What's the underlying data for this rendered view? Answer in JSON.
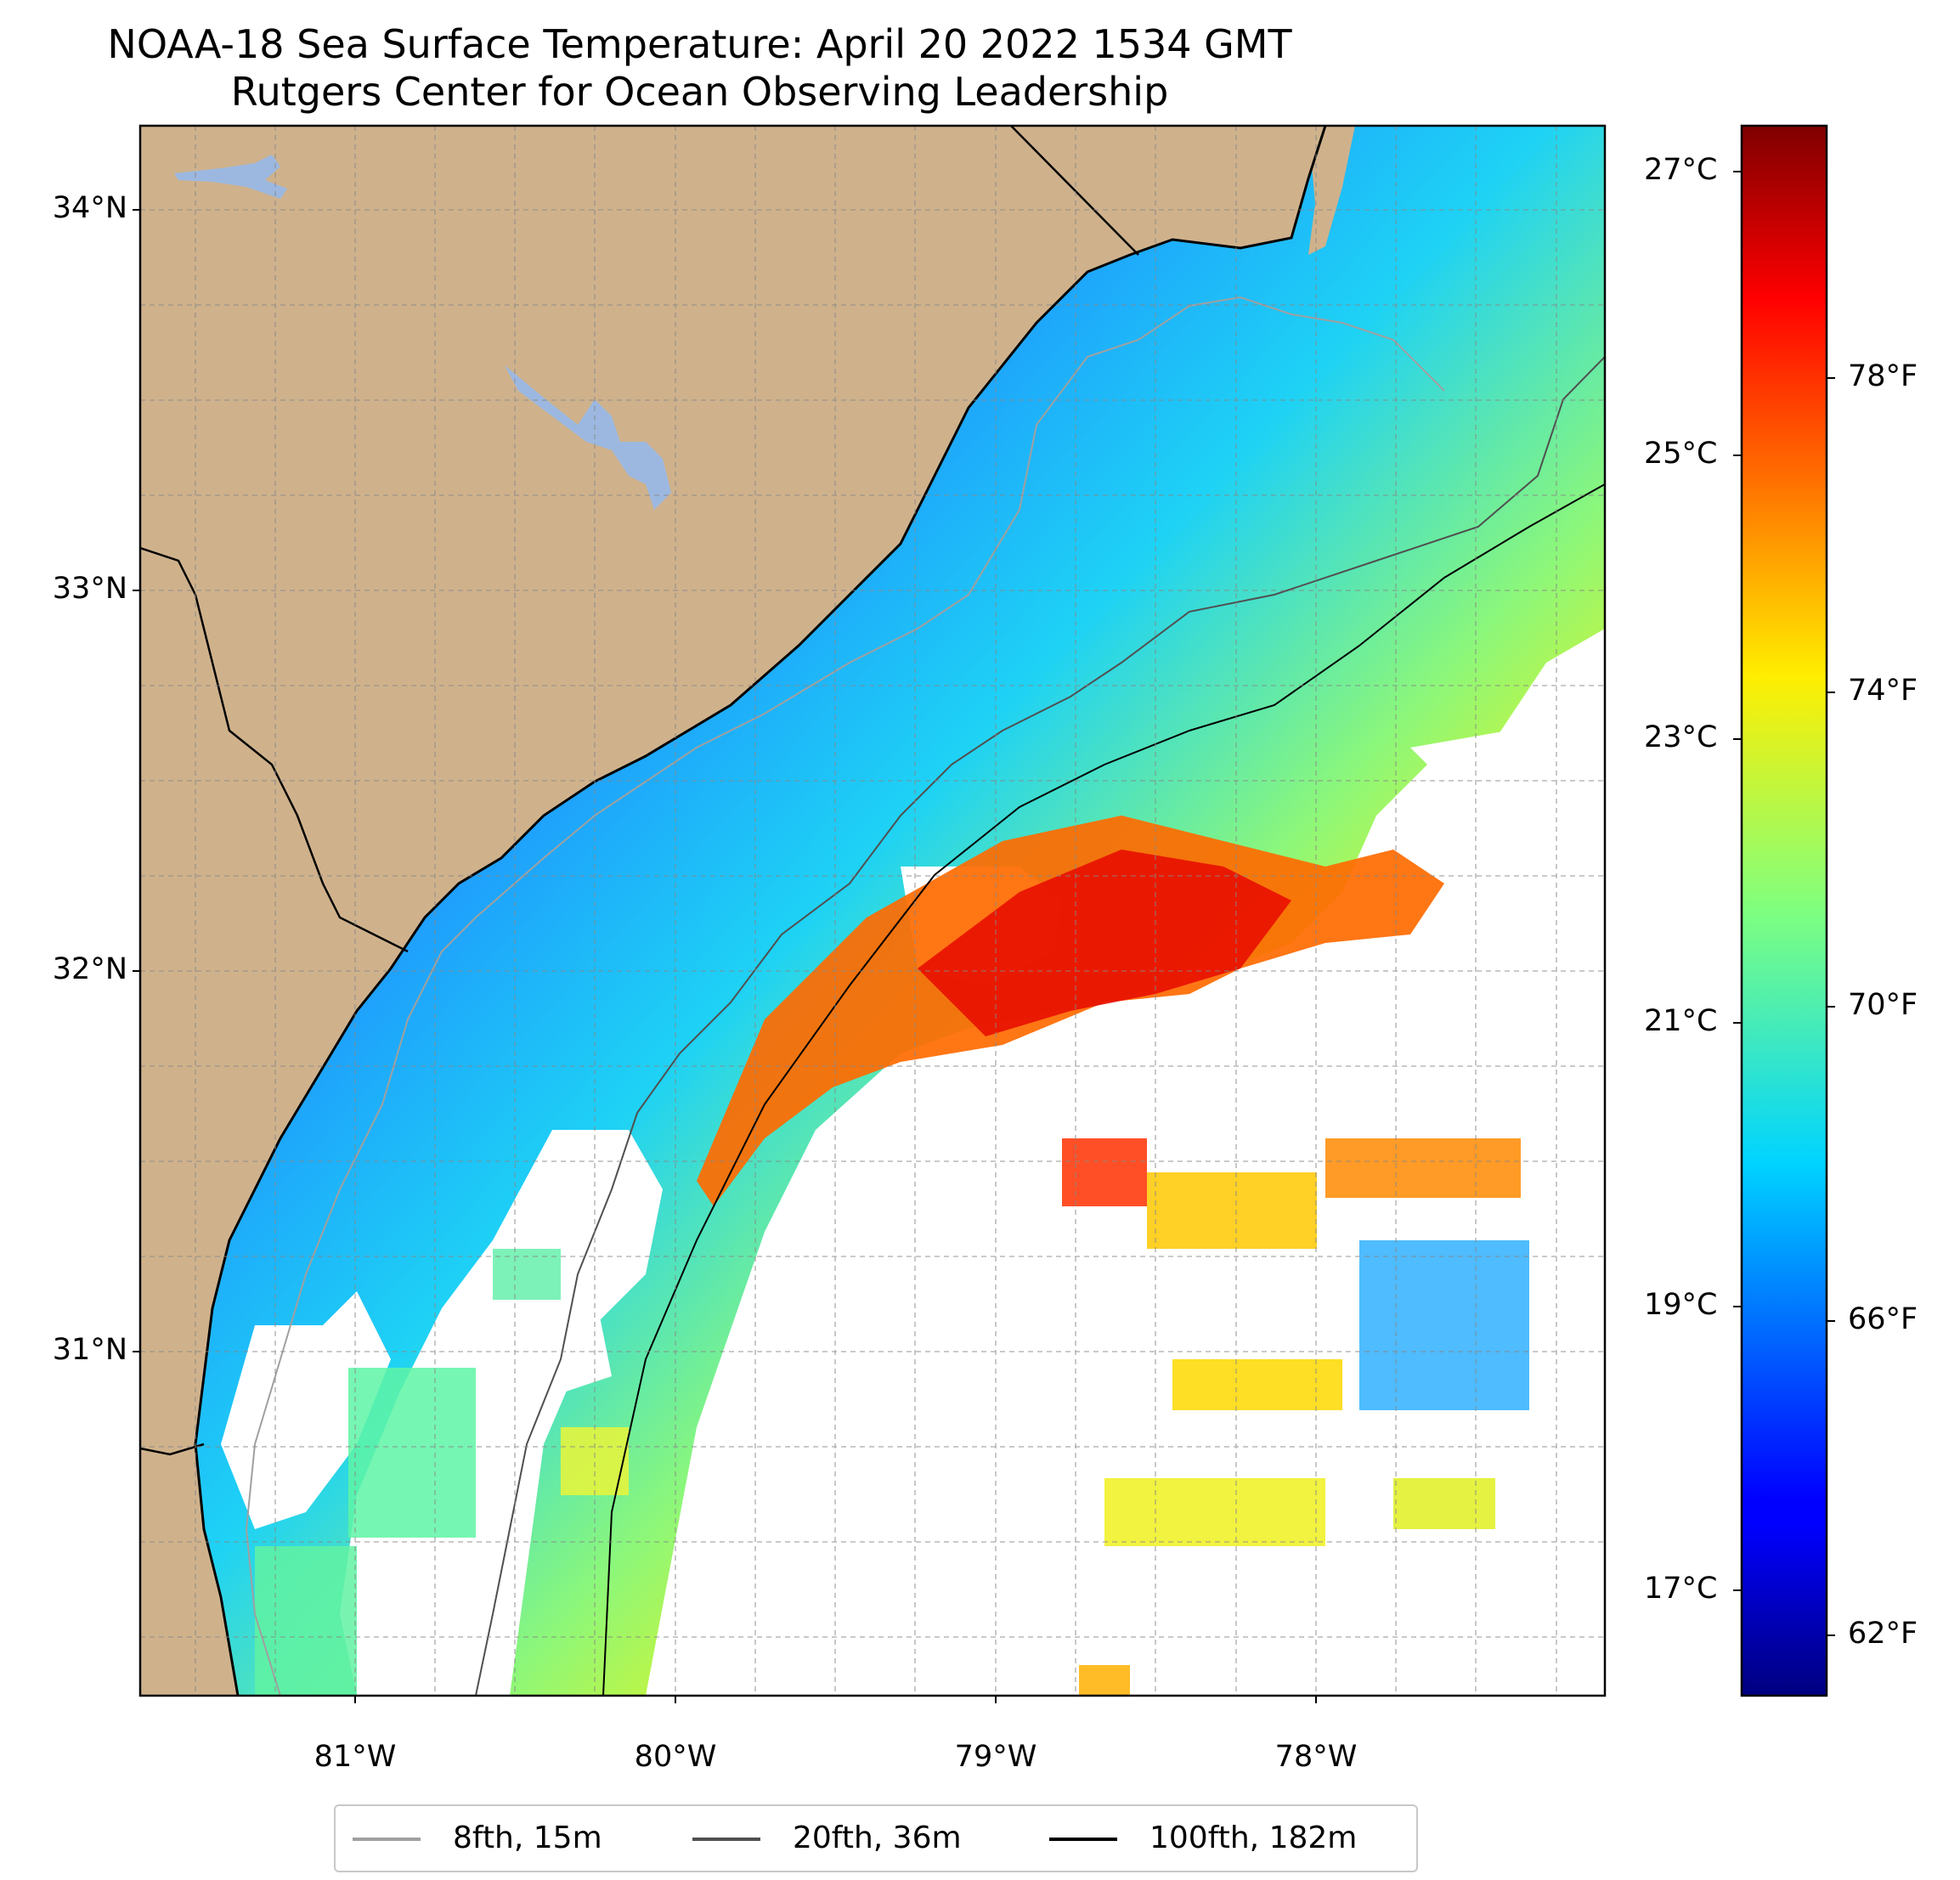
{
  "title_line1": "NOAA-18 Sea Surface Temperature: April 20 2022 1534 GMT",
  "title_line2": "Rutgers Center for Ocean Observing Leadership",
  "map": {
    "lat_range": [
      30.15,
      34.22
    ],
    "lon_range": [
      -81.68,
      -77.1
    ],
    "lat_ticks": [
      "34°N",
      "33°N",
      "32°N",
      "31°N"
    ],
    "lon_ticks": [
      "81°W",
      "80°W",
      "79°W",
      "78°W"
    ],
    "colors": {
      "land": "#cfb28c",
      "water_body": "#9cb8e0",
      "no_data": "#ffffff",
      "coast": "#000000"
    }
  },
  "colorbar": {
    "colormap": "jet",
    "celsius_ticks": [
      "27°C",
      "25°C",
      "23°C",
      "21°C",
      "19°C",
      "17°C"
    ],
    "fahrenheit_ticks": [
      "78°F",
      "74°F",
      "70°F",
      "66°F",
      "62°F"
    ]
  },
  "legend": {
    "items": [
      {
        "label": "8fth, 15m",
        "color": "#a0a0a0"
      },
      {
        "label": "20fth, 36m",
        "color": "#505050"
      },
      {
        "label": "100fth, 182m",
        "color": "#000000"
      }
    ]
  }
}
